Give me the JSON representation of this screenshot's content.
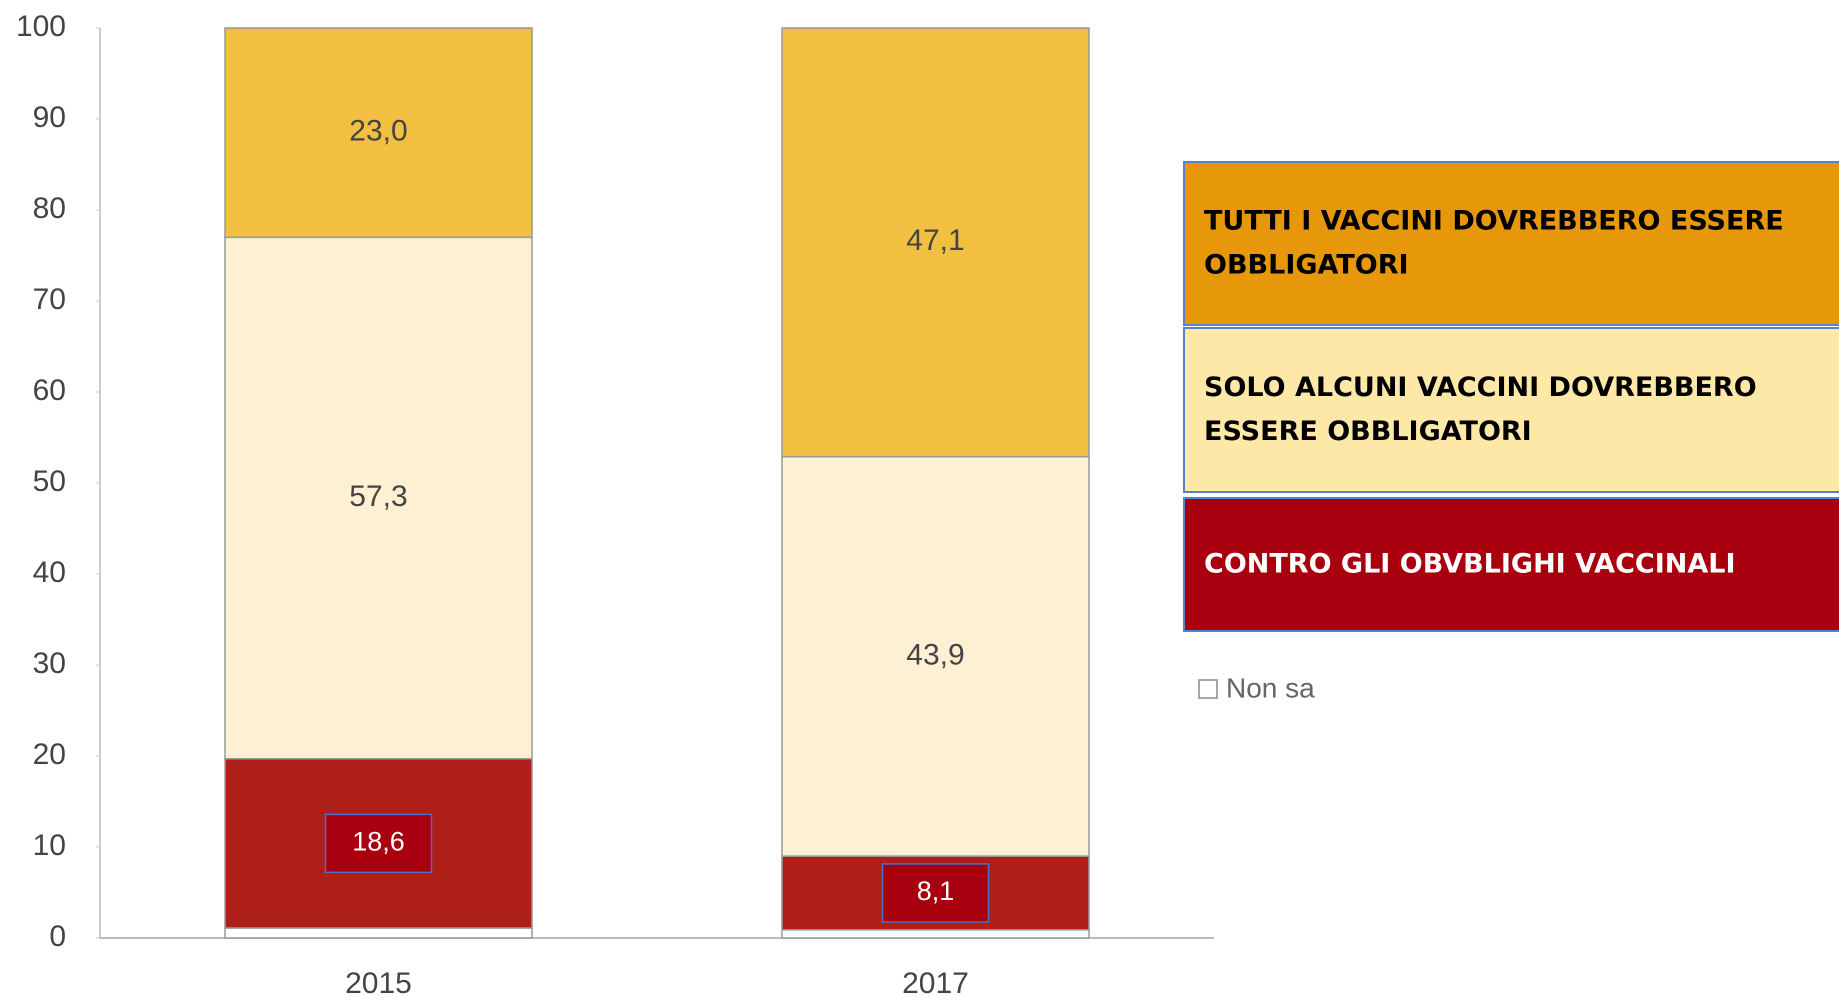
{
  "chart_data": {
    "type": "stacked_bar",
    "categories": [
      "2015",
      "2017"
    ],
    "series": [
      {
        "name": "Non sa",
        "color": "#ffffff",
        "values": [
          1.1,
          0.9
        ]
      },
      {
        "name": "CONTRO GLI OBVBLIGHI VACCINALI",
        "color": "#ad1f17",
        "values": [
          18.6,
          8.1
        ],
        "value_labels": [
          "18,6",
          "8,1"
        ]
      },
      {
        "name": "SOLO ALCUNI VACCINI DOVREBBERO ESSERE OBBLIGATORI",
        "color": "#fdf0d3",
        "values": [
          57.3,
          43.9
        ],
        "value_labels": [
          "57,3",
          "43,9"
        ]
      },
      {
        "name": "TUTTI I VACCINI DOVREBBERO ESSERE OBBLIGATORI",
        "color": "#f2bf40",
        "values": [
          23.0,
          47.1
        ],
        "value_labels": [
          "23,0",
          "47,1"
        ]
      }
    ],
    "ylim": [
      0,
      100
    ],
    "yticks": [
      0,
      10,
      20,
      30,
      40,
      50,
      60,
      70,
      80,
      90,
      100
    ]
  }
}
